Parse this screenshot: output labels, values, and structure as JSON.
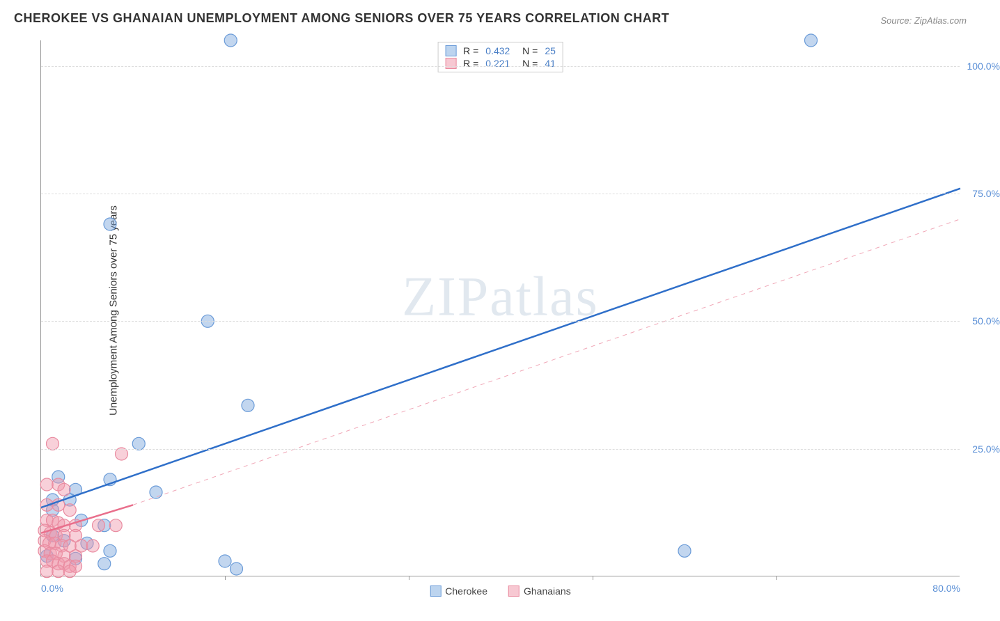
{
  "title": "CHEROKEE VS GHANAIAN UNEMPLOYMENT AMONG SENIORS OVER 75 YEARS CORRELATION CHART",
  "source": "Source: ZipAtlas.com",
  "ylabel": "Unemployment Among Seniors over 75 years",
  "watermark_a": "ZIP",
  "watermark_b": "atlas",
  "chart": {
    "type": "scatter",
    "xlim": [
      0,
      80
    ],
    "ylim": [
      0,
      105
    ],
    "xticks": [
      0,
      16,
      32,
      48,
      64,
      80
    ],
    "xtick_labels_shown": {
      "0": "0.0%",
      "80": "80.0%"
    },
    "yticks": [
      25,
      50,
      75,
      100
    ],
    "ytick_labels": {
      "25": "25.0%",
      "50": "50.0%",
      "75": "75.0%",
      "100": "100.0%"
    },
    "grid_color": "#dddddd",
    "background_color": "#ffffff",
    "marker_radius": 9,
    "marker_stroke_width": 1.2,
    "line_width_solid": 2.5,
    "line_width_dash": 1,
    "series": [
      {
        "name": "Cherokee",
        "color_fill": "rgba(120,165,220,0.45)",
        "color_stroke": "#6a9bd8",
        "swatch_fill": "#bcd4ef",
        "swatch_border": "#6a9bd8",
        "R": "0.432",
        "N": "25",
        "points": [
          [
            16.5,
            105
          ],
          [
            67,
            105
          ],
          [
            6,
            69
          ],
          [
            14.5,
            50
          ],
          [
            18,
            33.5
          ],
          [
            8.5,
            26
          ],
          [
            6,
            19
          ],
          [
            1.5,
            19.5
          ],
          [
            3,
            17
          ],
          [
            1,
            15
          ],
          [
            2.5,
            15
          ],
          [
            10,
            16.5
          ],
          [
            1,
            13
          ],
          [
            3.5,
            11
          ],
          [
            5.5,
            10
          ],
          [
            1,
            8
          ],
          [
            2,
            7
          ],
          [
            4,
            6.5
          ],
          [
            6,
            5
          ],
          [
            56,
            5
          ],
          [
            0.5,
            4
          ],
          [
            3,
            3.5
          ],
          [
            5.5,
            2.5
          ],
          [
            16,
            3
          ],
          [
            17,
            1.5
          ]
        ],
        "trend": {
          "x1": 0,
          "y1": 13.5,
          "x2": 80,
          "y2": 76,
          "dash": false,
          "color": "#2f6fc9"
        }
      },
      {
        "name": "Ghanaians",
        "color_fill": "rgba(240,150,170,0.45)",
        "color_stroke": "#e98ba0",
        "swatch_fill": "#f7c8d2",
        "swatch_border": "#e98ba0",
        "R": "0.221",
        "N": "41",
        "points": [
          [
            1,
            26
          ],
          [
            7,
            24
          ],
          [
            0.5,
            18
          ],
          [
            1.5,
            18
          ],
          [
            2,
            17
          ],
          [
            0.5,
            14
          ],
          [
            1.5,
            14
          ],
          [
            2.5,
            13
          ],
          [
            0.5,
            11
          ],
          [
            1,
            11
          ],
          [
            1.5,
            10.5
          ],
          [
            2,
            10
          ],
          [
            3,
            10
          ],
          [
            5,
            10
          ],
          [
            6.5,
            10
          ],
          [
            0.3,
            9
          ],
          [
            0.8,
            8.5
          ],
          [
            1.3,
            8
          ],
          [
            2,
            8
          ],
          [
            3,
            8
          ],
          [
            0.3,
            7
          ],
          [
            0.7,
            6.5
          ],
          [
            1.2,
            6.5
          ],
          [
            1.8,
            6
          ],
          [
            2.5,
            6
          ],
          [
            3.5,
            6
          ],
          [
            4.5,
            6
          ],
          [
            0.3,
            5
          ],
          [
            0.8,
            4.5
          ],
          [
            1.3,
            4.5
          ],
          [
            2,
            4
          ],
          [
            3,
            4
          ],
          [
            0.5,
            3
          ],
          [
            1,
            3
          ],
          [
            1.5,
            2.5
          ],
          [
            2,
            2.5
          ],
          [
            2.5,
            2
          ],
          [
            3,
            2
          ],
          [
            0.5,
            1
          ],
          [
            1.5,
            1
          ],
          [
            2.5,
            1
          ]
        ],
        "trend_solid": {
          "x1": 0,
          "y1": 8.5,
          "x2": 8,
          "y2": 14,
          "dash": false,
          "color": "#e96f8c"
        },
        "trend_dash": {
          "x1": 8,
          "y1": 14,
          "x2": 80,
          "y2": 70,
          "dash": true,
          "color": "#f0a6b6"
        }
      }
    ]
  },
  "legend_top": [
    {
      "swatch_fill": "#bcd4ef",
      "swatch_border": "#6a9bd8",
      "R": "0.432",
      "N": "25"
    },
    {
      "swatch_fill": "#f7c8d2",
      "swatch_border": "#e98ba0",
      "R": "0.221",
      "N": "41"
    }
  ],
  "legend_bottom": [
    {
      "label": "Cherokee",
      "swatch_fill": "#bcd4ef",
      "swatch_border": "#6a9bd8"
    },
    {
      "label": "Ghanaians",
      "swatch_fill": "#f7c8d2",
      "swatch_border": "#e98ba0"
    }
  ]
}
